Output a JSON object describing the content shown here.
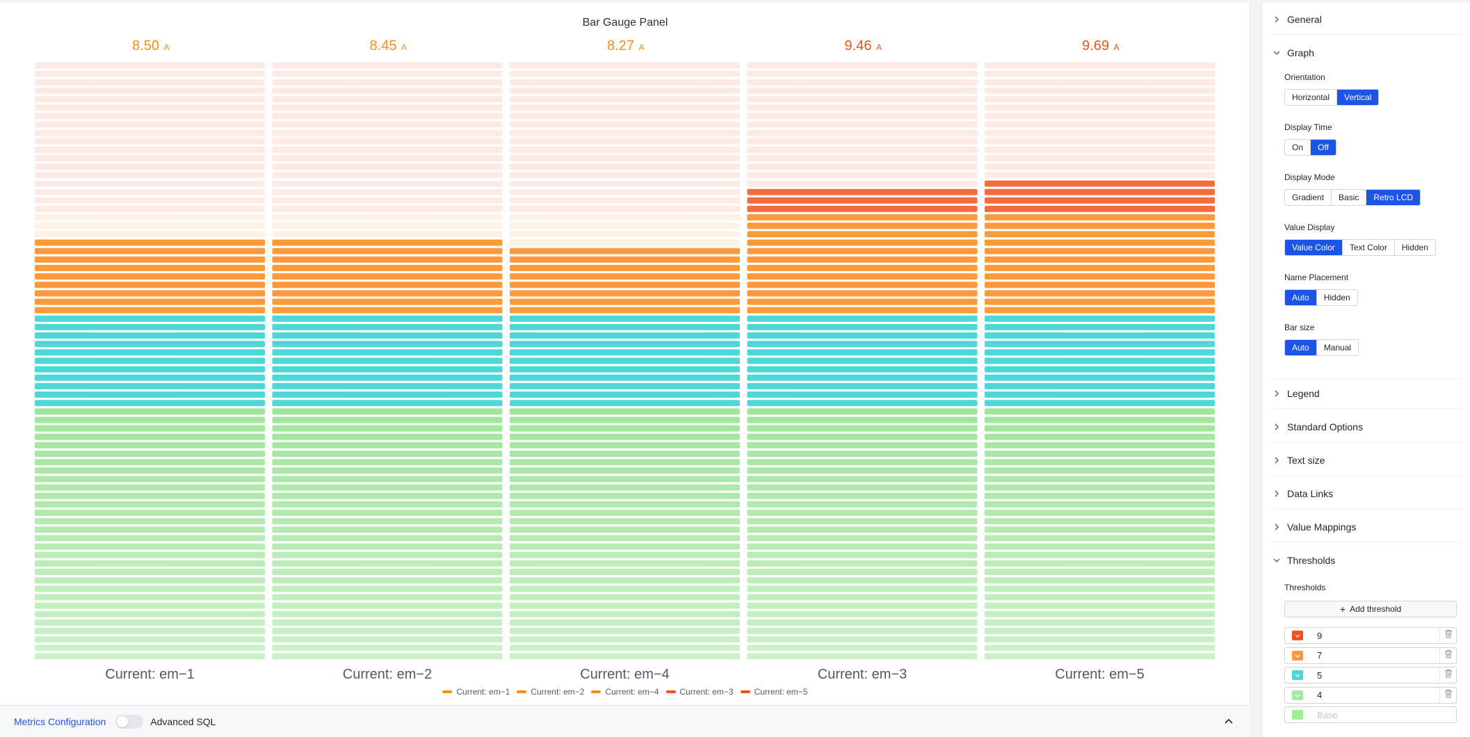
{
  "panel": {
    "title": "Bar Gauge Panel"
  },
  "chart_data": {
    "type": "bar",
    "orientation": "vertical",
    "display_mode": "retro-lcd",
    "ylim": [
      0,
      12
    ],
    "unit": "A",
    "categories": [
      "Current: em−1",
      "Current: em−2",
      "Current: em−4",
      "Current: em−3",
      "Current: em−5"
    ],
    "values": [
      8.5,
      8.45,
      8.27,
      9.46,
      9.69
    ],
    "value_labels": [
      "8.50",
      "8.45",
      "8.27",
      "9.46",
      "9.69"
    ],
    "value_colors": [
      "#ff8c1a",
      "#ff8c1a",
      "#ff8c1a",
      "#f0531f",
      "#f0531f"
    ],
    "thresholds": [
      {
        "value": 0,
        "color": "#a3ec9a"
      },
      {
        "value": 4,
        "color": "#a3ec9a"
      },
      {
        "value": 5,
        "color": "#4fd6d6"
      },
      {
        "value": 7,
        "color": "#ff9a3c"
      },
      {
        "value": 9,
        "color": "#f56b3c"
      }
    ],
    "legend": {
      "placement": "bottom-center",
      "entries": [
        {
          "name": "Current: em−1",
          "color": "#ff8c1a"
        },
        {
          "name": "Current: em−2",
          "color": "#ff8c1a"
        },
        {
          "name": "Current: em−4",
          "color": "#ff8c1a"
        },
        {
          "name": "Current: em−3",
          "color": "#f0531f"
        },
        {
          "name": "Current: em−5",
          "color": "#f0531f"
        }
      ]
    }
  },
  "bottom_bar": {
    "metrics_label": "Metrics Configuration",
    "advanced_sql_label": "Advanced SQL",
    "advanced_sql_on": false
  },
  "sidebar": {
    "sections": {
      "general": "General",
      "graph": "Graph",
      "legend": "Legend",
      "standard_options": "Standard Options",
      "text_size": "Text size",
      "data_links": "Data Links",
      "value_mappings": "Value Mappings",
      "thresholds": "Thresholds"
    },
    "graph": {
      "orientation": {
        "label": "Orientation",
        "options": [
          "Horizontal",
          "Vertical"
        ],
        "selected": "Vertical"
      },
      "display_time": {
        "label": "Display Time",
        "options": [
          "On",
          "Off"
        ],
        "selected": "Off"
      },
      "display_mode": {
        "label": "Display Mode",
        "options": [
          "Gradient",
          "Basic",
          "Retro LCD"
        ],
        "selected": "Retro LCD"
      },
      "value_display": {
        "label": "Value Display",
        "options": [
          "Value Color",
          "Text Color",
          "Hidden"
        ],
        "selected": "Value Color"
      },
      "name_placement": {
        "label": "Name Placement",
        "options": [
          "Auto",
          "Hidden"
        ],
        "selected": "Auto"
      },
      "bar_size": {
        "label": "Bar size",
        "options": [
          "Auto",
          "Manual"
        ],
        "selected": "Auto"
      }
    },
    "thresholds": {
      "label": "Thresholds",
      "add_label": "Add threshold",
      "rows": [
        {
          "value": "9",
          "color": "#f0531f"
        },
        {
          "value": "7",
          "color": "#ff9a3c"
        },
        {
          "value": "5",
          "color": "#4fd6d6"
        },
        {
          "value": "4",
          "color": "#a3ec9a"
        }
      ],
      "base_placeholder": "Base",
      "base_color": "#a3ec9a"
    }
  }
}
